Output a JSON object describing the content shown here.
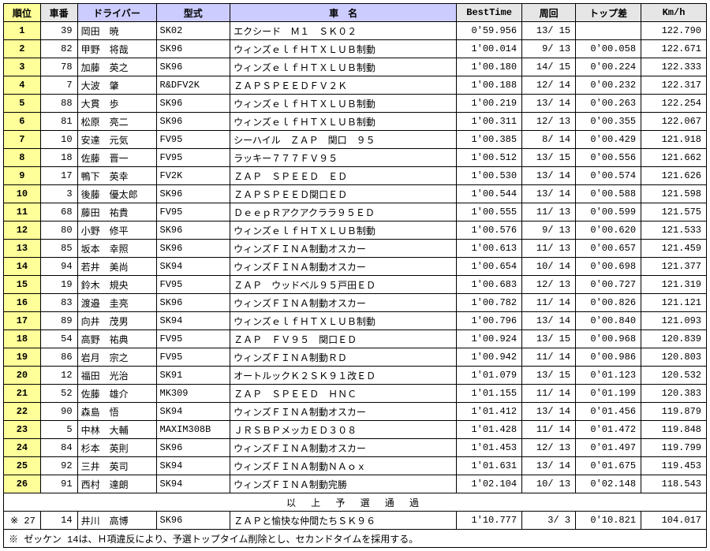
{
  "headers": {
    "rank": "順位",
    "carno": "車番",
    "driver": "ドライバー",
    "model": "型式",
    "carname": "車　名",
    "besttime": "BestTime",
    "laps": "周回",
    "gap": "トップ差",
    "speed": "Km/h"
  },
  "rows": [
    {
      "rank": "1",
      "carno": "39",
      "driver": "岡田　暁",
      "model": "SK02",
      "carname": "エクシード　Ｍ１　ＳＫ０２",
      "time": "0'59.956",
      "laps": "13/ 15",
      "gap": "",
      "speed": "122.790"
    },
    {
      "rank": "2",
      "carno": "82",
      "driver": "甲野　将哉",
      "model": "SK96",
      "carname": "ウィンズｅｌｆＨＴＸＬＵＢ制動",
      "time": "1'00.014",
      "laps": "9/ 13",
      "gap": "0'00.058",
      "speed": "122.671"
    },
    {
      "rank": "3",
      "carno": "78",
      "driver": "加藤　英之",
      "model": "SK96",
      "carname": "ウィンズｅｌｆＨＴＸＬＵＢ制動",
      "time": "1'00.180",
      "laps": "14/ 15",
      "gap": "0'00.224",
      "speed": "122.333"
    },
    {
      "rank": "4",
      "carno": "7",
      "driver": "大波　肇",
      "model": "R&DFV2K",
      "carname": "ＺＡＰＳＰＥＥＤＦＶ２Ｋ",
      "time": "1'00.188",
      "laps": "12/ 14",
      "gap": "0'00.232",
      "speed": "122.317"
    },
    {
      "rank": "5",
      "carno": "88",
      "driver": "大貫　歩",
      "model": "SK96",
      "carname": "ウィンズｅｌｆＨＴＸＬＵＢ制動",
      "time": "1'00.219",
      "laps": "13/ 14",
      "gap": "0'00.263",
      "speed": "122.254"
    },
    {
      "rank": "6",
      "carno": "81",
      "driver": "松原　亮二",
      "model": "SK96",
      "carname": "ウィンズｅｌｆＨＴＸＬＵＢ制動",
      "time": "1'00.311",
      "laps": "12/ 13",
      "gap": "0'00.355",
      "speed": "122.067"
    },
    {
      "rank": "7",
      "carno": "10",
      "driver": "安達　元気",
      "model": "FV95",
      "carname": "シーハイル　ＺＡＰ　関口　９５",
      "time": "1'00.385",
      "laps": "8/ 14",
      "gap": "0'00.429",
      "speed": "121.918"
    },
    {
      "rank": "8",
      "carno": "18",
      "driver": "佐藤　晋一",
      "model": "FV95",
      "carname": "ラッキー７７７ＦＶ９５",
      "time": "1'00.512",
      "laps": "13/ 15",
      "gap": "0'00.556",
      "speed": "121.662"
    },
    {
      "rank": "9",
      "carno": "17",
      "driver": "鴨下　英幸",
      "model": "FV2K",
      "carname": "ＺＡＰ　ＳＰＥＥＤ　ＥＤ",
      "time": "1'00.530",
      "laps": "13/ 14",
      "gap": "0'00.574",
      "speed": "121.626"
    },
    {
      "rank": "10",
      "carno": "3",
      "driver": "後藤　優太郎",
      "model": "SK96",
      "carname": "ＺＡＰＳＰＥＥＤ関口ＥＤ",
      "time": "1'00.544",
      "laps": "13/ 14",
      "gap": "0'00.588",
      "speed": "121.598"
    },
    {
      "rank": "11",
      "carno": "68",
      "driver": "藤田　祐貴",
      "model": "FV95",
      "carname": "ＤｅｅｐＲアクアクララ９５ＥＤ",
      "time": "1'00.555",
      "laps": "11/ 13",
      "gap": "0'00.599",
      "speed": "121.575"
    },
    {
      "rank": "12",
      "carno": "80",
      "driver": "小野　修平",
      "model": "SK96",
      "carname": "ウィンズｅｌｆＨＴＸＬＵＢ制動",
      "time": "1'00.576",
      "laps": "9/ 13",
      "gap": "0'00.620",
      "speed": "121.533"
    },
    {
      "rank": "13",
      "carno": "85",
      "driver": "坂本　幸照",
      "model": "SK96",
      "carname": "ウィンズＦＩＮＡ制動オスカー",
      "time": "1'00.613",
      "laps": "11/ 13",
      "gap": "0'00.657",
      "speed": "121.459"
    },
    {
      "rank": "14",
      "carno": "94",
      "driver": "若井　美尚",
      "model": "SK94",
      "carname": "ウィンズＦＩＮＡ制動オスカー",
      "time": "1'00.654",
      "laps": "10/ 14",
      "gap": "0'00.698",
      "speed": "121.377"
    },
    {
      "rank": "15",
      "carno": "19",
      "driver": "鈴木　規央",
      "model": "FV95",
      "carname": "ＺＡＰ　ウッドベル９５戸田ＥＤ",
      "time": "1'00.683",
      "laps": "12/ 13",
      "gap": "0'00.727",
      "speed": "121.319"
    },
    {
      "rank": "16",
      "carno": "83",
      "driver": "渡邉　圭亮",
      "model": "SK96",
      "carname": "ウィンズＦＩＮＡ制動オスカー",
      "time": "1'00.782",
      "laps": "11/ 14",
      "gap": "0'00.826",
      "speed": "121.121"
    },
    {
      "rank": "17",
      "carno": "89",
      "driver": "向井　茂男",
      "model": "SK94",
      "carname": "ウィンズｅｌｆＨＴＸＬＵＢ制動",
      "time": "1'00.796",
      "laps": "13/ 14",
      "gap": "0'00.840",
      "speed": "121.093"
    },
    {
      "rank": "18",
      "carno": "54",
      "driver": "高野　祐典",
      "model": "FV95",
      "carname": "ＺＡＰ　ＦＶ９５　関口ＥＤ",
      "time": "1'00.924",
      "laps": "13/ 15",
      "gap": "0'00.968",
      "speed": "120.839"
    },
    {
      "rank": "19",
      "carno": "86",
      "driver": "岩月　宗之",
      "model": "FV95",
      "carname": "ウィンズＦＩＮＡ制動ＲＤ",
      "time": "1'00.942",
      "laps": "11/ 14",
      "gap": "0'00.986",
      "speed": "120.803"
    },
    {
      "rank": "20",
      "carno": "12",
      "driver": "福田　光治",
      "model": "SK91",
      "carname": "オートルックＫ２ＳＫ９１改ＥＤ",
      "time": "1'01.079",
      "laps": "13/ 15",
      "gap": "0'01.123",
      "speed": "120.532"
    },
    {
      "rank": "21",
      "carno": "52",
      "driver": "佐藤　雄介",
      "model": "MK309",
      "carname": "ＺＡＰ　ＳＰＥＥＤ　ＨＮＣ",
      "time": "1'01.155",
      "laps": "11/ 14",
      "gap": "0'01.199",
      "speed": "120.383"
    },
    {
      "rank": "22",
      "carno": "90",
      "driver": "森島　悟",
      "model": "SK94",
      "carname": "ウィンズＦＩＮＡ制動オスカー",
      "time": "1'01.412",
      "laps": "13/ 14",
      "gap": "0'01.456",
      "speed": "119.879"
    },
    {
      "rank": "23",
      "carno": "5",
      "driver": "中林　大輔",
      "model": "MAXIM308B",
      "carname": "ＪＲＳＢＰメッカＥＤ３０８",
      "time": "1'01.428",
      "laps": "11/ 14",
      "gap": "0'01.472",
      "speed": "119.848"
    },
    {
      "rank": "24",
      "carno": "84",
      "driver": "杉本　英則",
      "model": "SK96",
      "carname": "ウィンズＦＩＮＡ制動オスカー",
      "time": "1'01.453",
      "laps": "12/ 13",
      "gap": "0'01.497",
      "speed": "119.799"
    },
    {
      "rank": "25",
      "carno": "92",
      "driver": "三井　英司",
      "model": "SK94",
      "carname": "ウィンズＦＩＮＡ制動ＮＡｏｘ",
      "time": "1'01.631",
      "laps": "13/ 14",
      "gap": "0'01.675",
      "speed": "119.453"
    },
    {
      "rank": "26",
      "carno": "91",
      "driver": "西村　達朗",
      "model": "SK94",
      "carname": "ウィンズＦＩＮＡ制動完勝",
      "time": "1'02.104",
      "laps": "10/ 13",
      "gap": "0'02.148",
      "speed": "118.543"
    }
  ],
  "midnote": "以 上 予 選 通 過",
  "extra": {
    "rank": "※ 27",
    "carno": "14",
    "driver": "井川　高博",
    "model": "SK96",
    "carname": "ＺＡＰと愉快な仲間たちＳＫ９６",
    "time": "1'10.777",
    "laps": "3/ 3",
    "gap": "0'10.821",
    "speed": "104.017"
  },
  "footnote": "※ ゼッケン 14は、Ｈ項違反により、予選トップタイム削除とし、セカンドタイムを採用する。"
}
